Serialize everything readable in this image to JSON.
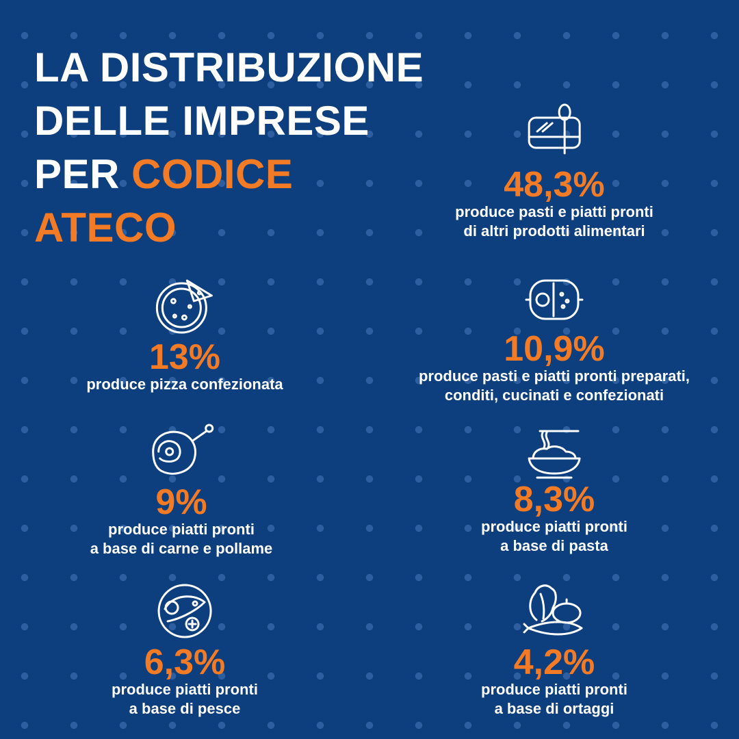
{
  "title": {
    "line1": "LA DISTRIBUZIONE",
    "line2": "DELLE IMPRESE",
    "line3_prefix": "PER ",
    "line3_accent": "CODICE",
    "line4_accent": "ATECO"
  },
  "colors": {
    "background": "#0d3e7d",
    "accent": "#f47b25",
    "text": "#ffffff"
  },
  "stats": [
    {
      "icon": "meal-box-spoon-icon",
      "value": "48,3%",
      "line1": "produce pasti e piatti pronti",
      "line2": "di altri prodotti alimentari"
    },
    {
      "icon": "pizza-icon",
      "value": "13%",
      "line1": "produce pizza confezionata",
      "line2": ""
    },
    {
      "icon": "meal-tray-icon",
      "value": "10,9%",
      "line1": "produce pasti e piatti pronti preparati,",
      "line2": "conditi, cucinati e confezionati"
    },
    {
      "icon": "ham-leg-icon",
      "value": "9%",
      "line1": "produce piatti pronti",
      "line2": "a base di carne e pollame"
    },
    {
      "icon": "pasta-bowl-icon",
      "value": "8,3%",
      "line1": "produce piatti pronti",
      "line2": "a base di pasta"
    },
    {
      "icon": "fish-plate-icon",
      "value": "6,3%",
      "line1": "produce piatti pronti",
      "line2": "a base di pesce"
    },
    {
      "icon": "vegetables-icon",
      "value": "4,2%",
      "line1": "produce piatti pronti",
      "line2": "a base di ortaggi"
    }
  ]
}
